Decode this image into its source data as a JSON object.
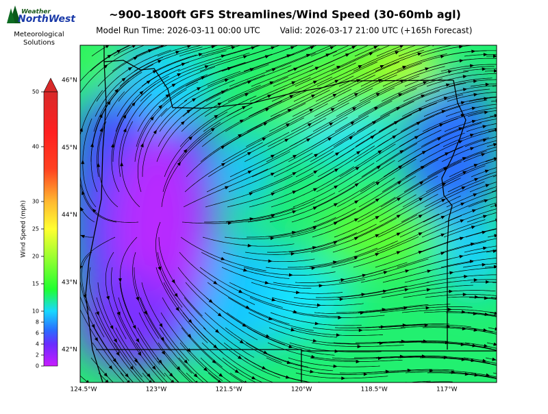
{
  "logo": {
    "brand_top": "Weather",
    "brand_main": "NorthWest",
    "org_line1": "Meteorological",
    "org_line2": "Solutions"
  },
  "title": "~900-1800ft GFS Streamlines/Wind Speed (30-60mb agl)",
  "model_run": "Model Run Time: 2026-03-11 00:00 UTC",
  "valid": "Valid: 2026-03-17 21:00 UTC  (+165h Forecast)",
  "colorbar": {
    "label": "Wind Speed (mph)",
    "lim": [
      0,
      50
    ],
    "ticks": [
      0,
      2,
      4,
      6,
      8,
      10,
      15,
      20,
      25,
      30,
      40,
      50
    ]
  },
  "lat_labels": [
    {
      "value": 46,
      "label": "46°N"
    },
    {
      "value": 45,
      "label": "45°N"
    },
    {
      "value": 44,
      "label": "44°N"
    },
    {
      "value": 43,
      "label": "43°N"
    },
    {
      "value": 42,
      "label": "42°N"
    }
  ],
  "lon_labels": [
    {
      "value": 124.5,
      "label": "124.5°W"
    },
    {
      "value": 123,
      "label": "123°W"
    },
    {
      "value": 121.5,
      "label": "121.5°W"
    },
    {
      "value": 120,
      "label": "120°W"
    },
    {
      "value": 118.5,
      "label": "118.5°W"
    },
    {
      "value": 117,
      "label": "117°W"
    }
  ]
}
